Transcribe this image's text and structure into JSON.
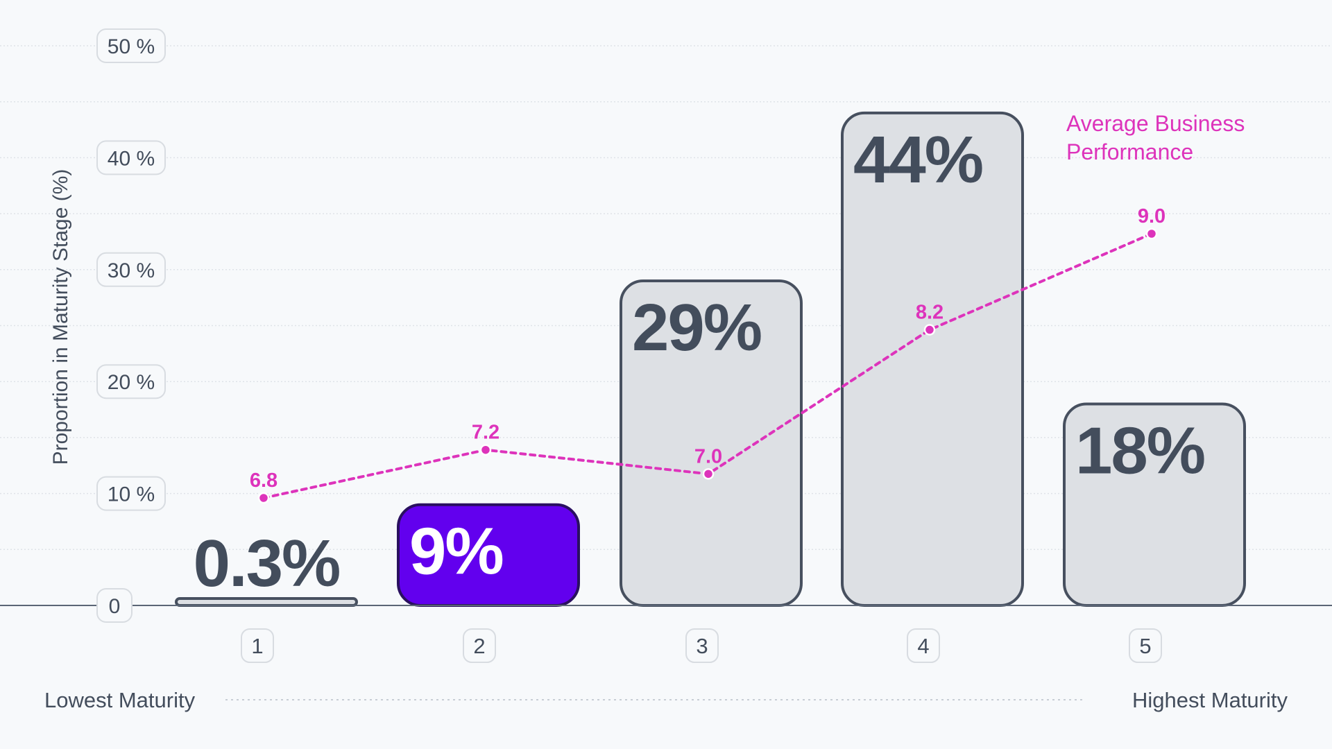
{
  "chart_data": {
    "type": "bar",
    "categories": [
      "1",
      "2",
      "3",
      "4",
      "5"
    ],
    "values": [
      0.3,
      9,
      29,
      44,
      18
    ],
    "bar_labels": [
      "0.3%",
      "9%",
      "29%",
      "44%",
      "18%"
    ],
    "highlight_index": 1,
    "ylim": [
      0,
      50
    ],
    "y_ticks": [
      0,
      10,
      20,
      30,
      40,
      50
    ],
    "y_tick_labels": [
      "0",
      "10 %",
      "20 %",
      "30 %",
      "40 %",
      "50 %"
    ],
    "ylabel": "Proportion in Maturity Stage (%)",
    "xlabel_left": "Lowest Maturity",
    "xlabel_right": "Highest Maturity",
    "grid": true,
    "line_series": {
      "name": "Average Business Performance",
      "name_lines": [
        "Average Business",
        "Performance"
      ],
      "values": [
        6.8,
        7.2,
        7.0,
        8.2,
        9.0
      ],
      "value_labels": [
        "6.8",
        "7.2",
        "7.0",
        "8.2",
        "9.0"
      ],
      "style": "dotted",
      "range": [
        6.0,
        9.5
      ]
    },
    "colors": {
      "background": "#f7f9fb",
      "bar_fill": "#dde0e4",
      "bar_stroke": "#47505f",
      "bar_text": "#434d5c",
      "highlight_fill": "#6200ee",
      "highlight_stroke": "#2a1060",
      "highlight_text": "#ffffff",
      "line": "#dd33bb",
      "axis_text": "#434d5c",
      "grid": "#dfe3e8",
      "baseline": "#5b6676"
    }
  }
}
